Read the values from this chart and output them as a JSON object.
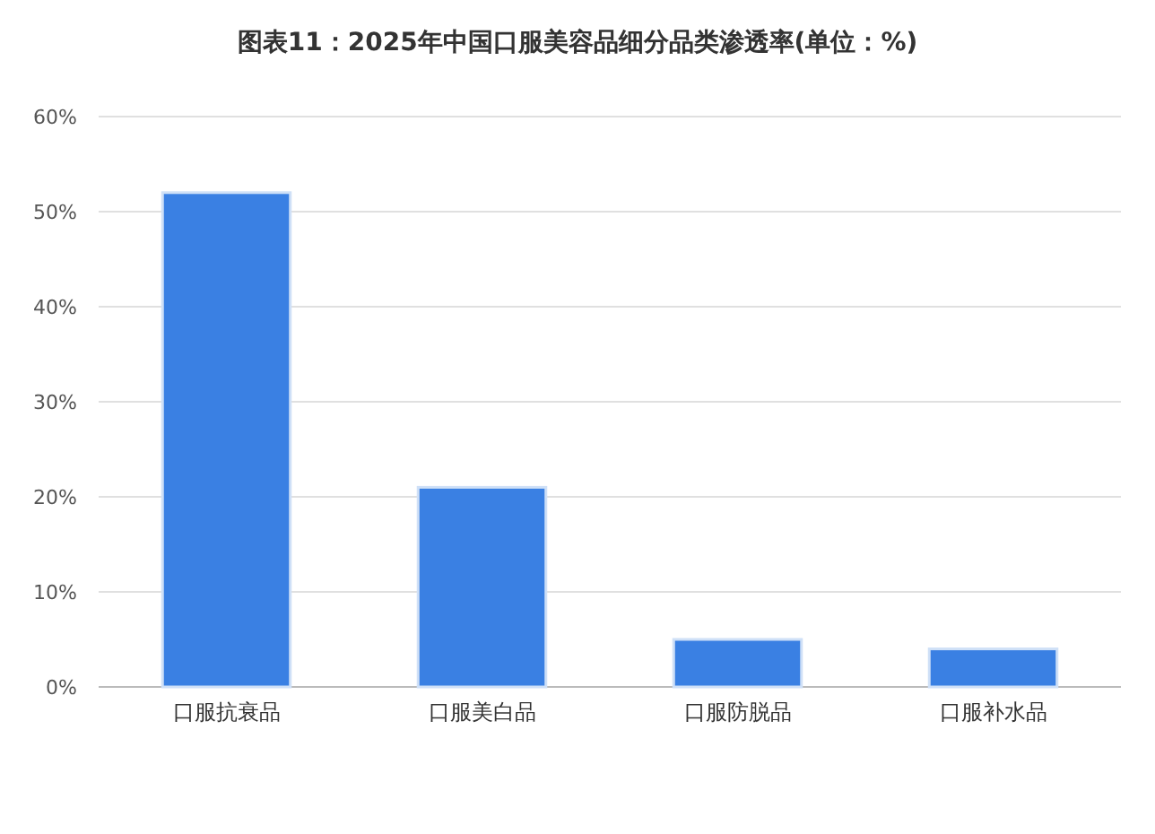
{
  "chart_data": {
    "type": "bar",
    "title": "图表11：2025年中国口服美容品细分品类渗透率(单位：%)",
    "categories": [
      "口服抗衰品",
      "口服美白品",
      "口服防脱品",
      "口服补水品"
    ],
    "values": [
      52,
      21,
      5,
      4
    ],
    "color": "#3a80e3",
    "ylim": [
      0,
      60
    ],
    "yticks": [
      {
        "value": 0,
        "label": "0%"
      },
      {
        "value": 10,
        "label": "10%"
      },
      {
        "value": 20,
        "label": "20%"
      },
      {
        "value": 30,
        "label": "30%"
      },
      {
        "value": 40,
        "label": "40%"
      },
      {
        "value": 50,
        "label": "50%"
      },
      {
        "value": 60,
        "label": "60%"
      }
    ],
    "grid": "y"
  }
}
